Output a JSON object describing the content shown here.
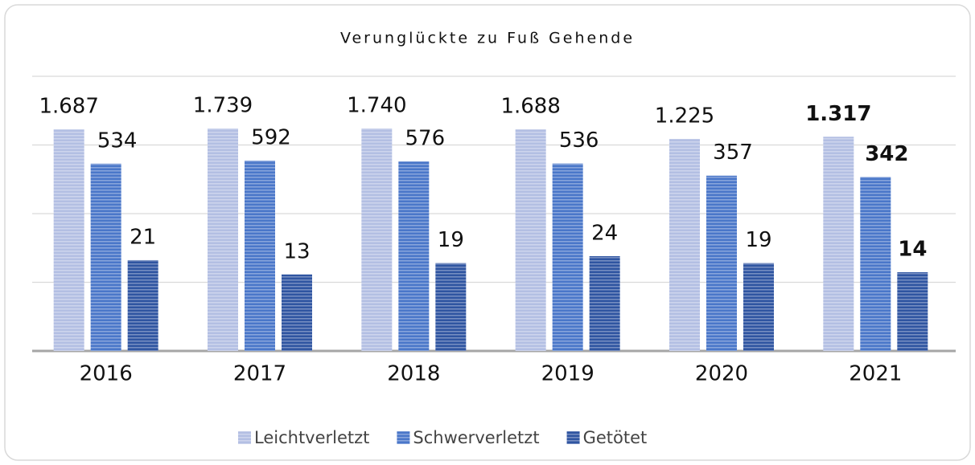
{
  "chart_data": {
    "type": "bar",
    "title": "Verunglückte zu Fuß Gehende",
    "categories": [
      "2016",
      "2017",
      "2018",
      "2019",
      "2020",
      "2021"
    ],
    "series": [
      {
        "name": "Leichtverletzt",
        "color": "#b3bfe3",
        "values": [
          1687,
          1739,
          1740,
          1688,
          1225,
          1317
        ],
        "value_labels": [
          "1.687",
          "1.739",
          "1.740",
          "1.688",
          "1.225",
          "1.317"
        ]
      },
      {
        "name": "Schwerverletzt",
        "color": "#4a77c9",
        "values": [
          534,
          592,
          576,
          536,
          357,
          342
        ]
      },
      {
        "name": "Getötet",
        "color": "#2f55a1",
        "values": [
          21,
          13,
          19,
          24,
          19,
          14
        ]
      }
    ],
    "log_scale": true,
    "ylim": [
      1,
      10000
    ],
    "yticks": [
      10,
      100,
      1000,
      10000
    ],
    "grid": true,
    "bold_category": "2021",
    "legend": "bottom"
  }
}
